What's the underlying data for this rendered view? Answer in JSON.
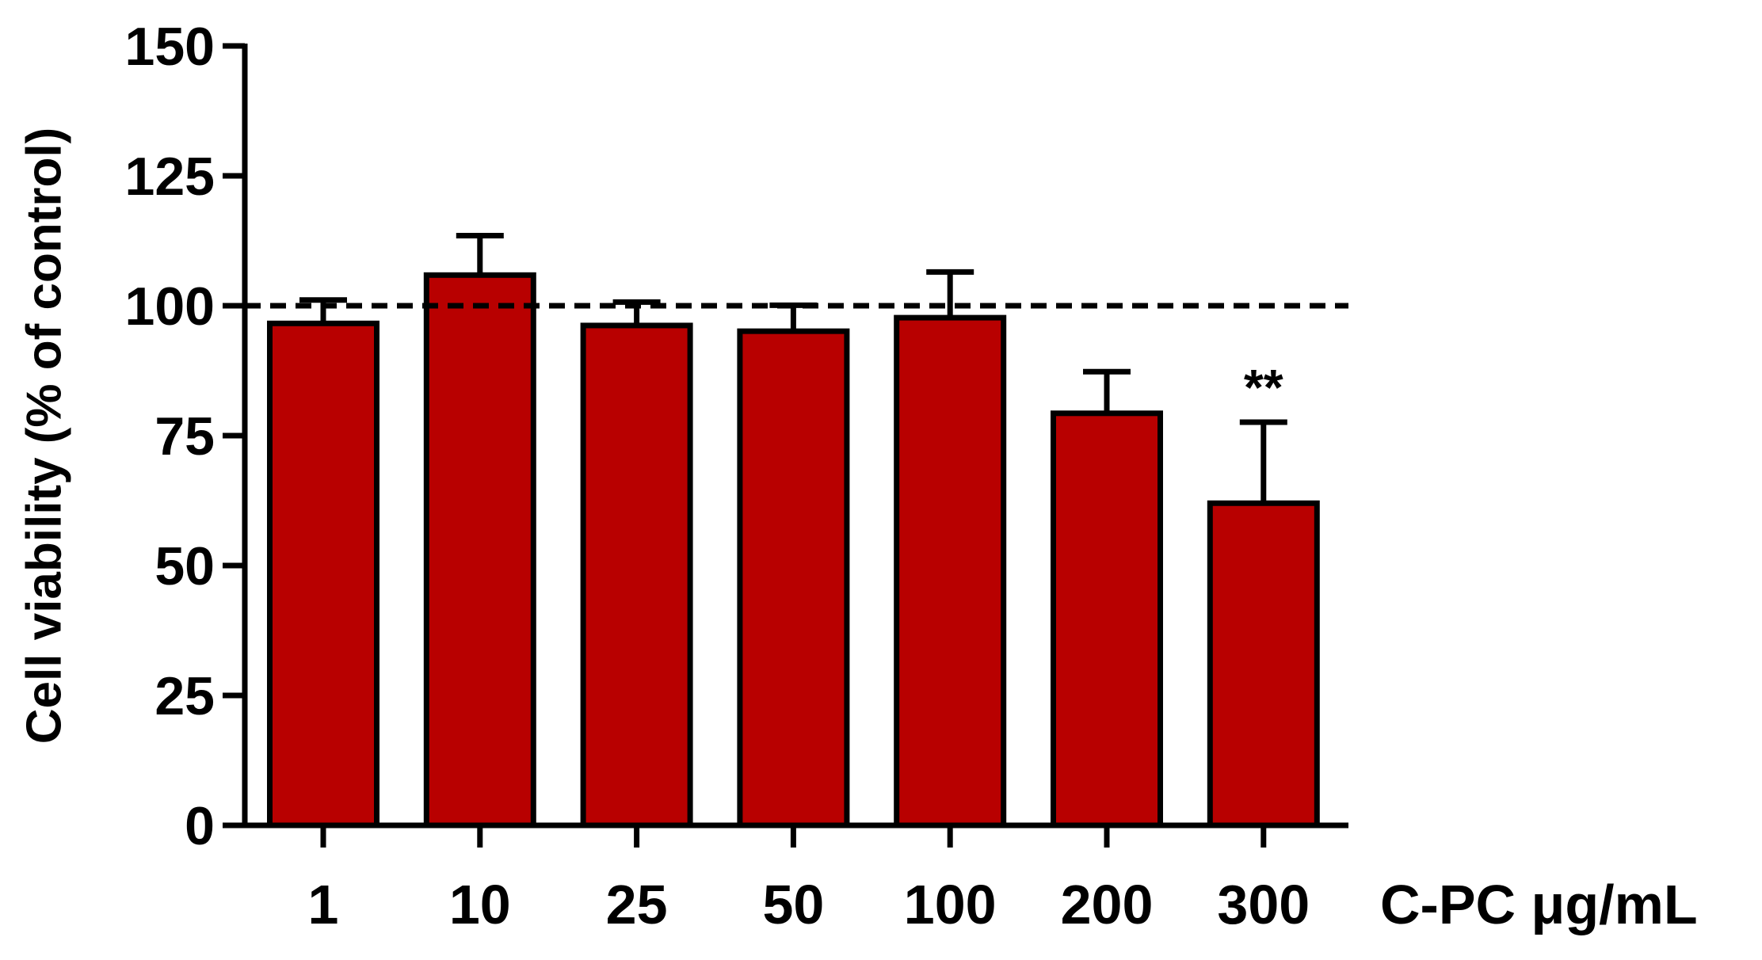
{
  "chart_data": {
    "type": "bar",
    "ylabel": "Cell viability (% of control)",
    "xlabel": "C-PC μg/mL",
    "categories": [
      "1",
      "10",
      "25",
      "50",
      "100",
      "200",
      "300"
    ],
    "values": [
      96.6,
      105.9,
      96.2,
      95.1,
      97.7,
      79.3,
      62
    ],
    "errors": [
      4.5,
      7.6,
      4.5,
      5,
      8.8,
      8,
      15.6
    ],
    "significance": [
      null,
      null,
      null,
      null,
      null,
      null,
      "**"
    ],
    "color": "#b80000",
    "reference_line": 100,
    "ylim": [
      0,
      150
    ],
    "yticks": [
      0,
      25,
      50,
      75,
      100,
      125,
      150
    ]
  }
}
